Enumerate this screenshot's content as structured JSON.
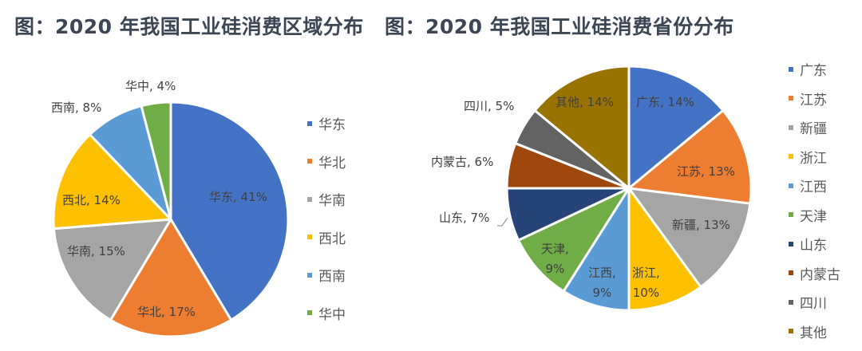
{
  "titles": {
    "left": "图：2020 年我国工业硅消费区域分布",
    "right": "图：2020 年我国工业硅消费省份分布"
  },
  "chart_data": [
    {
      "type": "pie",
      "title": "图：2020 年我国工业硅消费区域分布",
      "categories": [
        "华东",
        "华北",
        "华南",
        "西北",
        "西南",
        "华中"
      ],
      "values": [
        41,
        17,
        15,
        14,
        8,
        4
      ],
      "unit": "%",
      "colors": [
        "#4472c4",
        "#ed7d31",
        "#a5a5a5",
        "#ffc000",
        "#5b9bd5",
        "#70ad47"
      ],
      "data_labels": [
        "华东, 41%",
        "华北, 17%",
        "华南, 15%",
        "西北, 14%",
        "西南, 8%",
        "华中, 4%"
      ],
      "start_angle_deg": 0,
      "direction": "clockwise",
      "legend_position": "right"
    },
    {
      "type": "pie",
      "title": "图：2020 年我国工业硅消费省份分布",
      "categories": [
        "广东",
        "江苏",
        "新疆",
        "浙江",
        "江西",
        "天津",
        "山东",
        "内蒙古",
        "四川",
        "其他"
      ],
      "values": [
        14,
        13,
        13,
        10,
        9,
        9,
        7,
        6,
        5,
        14
      ],
      "unit": "%",
      "colors": [
        "#4472c4",
        "#ed7d31",
        "#a5a5a5",
        "#ffc000",
        "#5b9bd5",
        "#70ad47",
        "#264478",
        "#9e480e",
        "#636363",
        "#997300"
      ],
      "data_labels": [
        "广东, 14%",
        "江苏, 13%",
        "新疆, 13%",
        "浙江, 10%",
        "江西, 9%",
        "天津, 9%",
        "山东, 7%",
        "内蒙古, 6%",
        "四川, 5%",
        "其他, 14%"
      ],
      "start_angle_deg": 0,
      "direction": "clockwise",
      "legend_position": "right"
    }
  ],
  "legend_left": [
    "华东",
    "华北",
    "华南",
    "西北",
    "西南",
    "华中"
  ],
  "legend_right": [
    "广东",
    "江苏",
    "新疆",
    "浙江",
    "江西",
    "天津",
    "山东",
    "内蒙古",
    "四川",
    "其他"
  ],
  "labels_left": {
    "huadong": "华东, 41%",
    "huabei": "华北, 17%",
    "huanan": "华南, 15%",
    "xibei": "西北, 14%",
    "xinan": "西南, 8%",
    "huazhong": "华中, 4%"
  },
  "labels_right": {
    "guangdong": "广东, 14%",
    "jiangsu": "江苏, 13%",
    "xinjiang": "新疆, 13%",
    "zhejiang_1": "浙江,",
    "zhejiang_2": "10%",
    "jiangxi_1": "江西,",
    "jiangxi_2": "9%",
    "tianjin_1": "天津,",
    "tianjin_2": "9%",
    "shandong": "山东, 7%",
    "neimenggu": "内蒙古, 6%",
    "sichuan": "四川, 5%",
    "qita": "其他, 14%"
  }
}
